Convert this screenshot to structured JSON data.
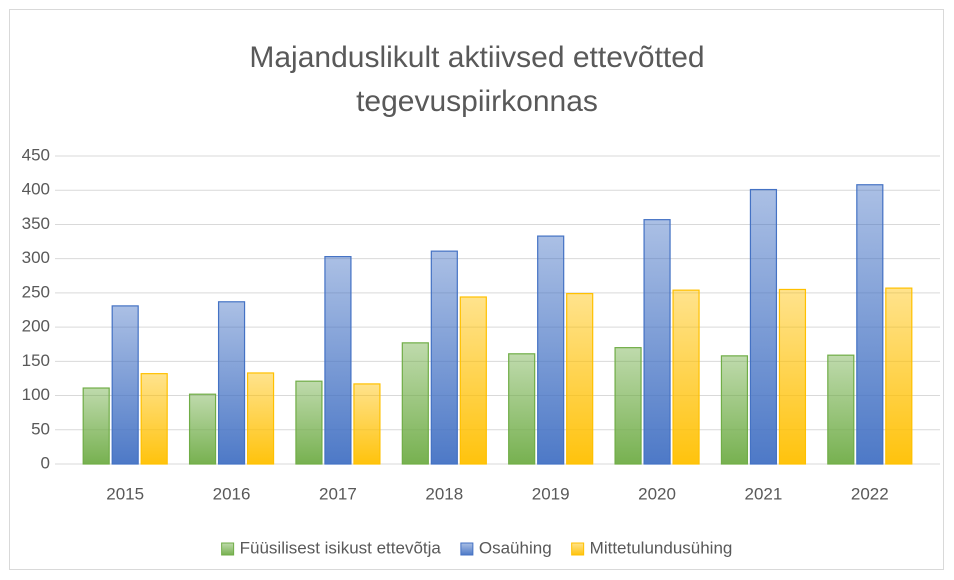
{
  "chart_data": {
    "type": "bar",
    "title": "Majanduslikult aktiivsed ettevõtted tegevuspiirkonnas",
    "categories": [
      "2015",
      "2016",
      "2017",
      "2018",
      "2019",
      "2020",
      "2021",
      "2022"
    ],
    "series": [
      {
        "name": "Füüsilisest isikust ettevõtja",
        "color": "#70ad47",
        "values": [
          111,
          102,
          121,
          177,
          161,
          170,
          158,
          159
        ]
      },
      {
        "name": "Osaühing",
        "color": "#4472c4",
        "values": [
          231,
          237,
          303,
          311,
          333,
          357,
          401,
          408
        ]
      },
      {
        "name": "Mittetulundusühing",
        "color": "#ffc000",
        "values": [
          132,
          133,
          117,
          244,
          249,
          254,
          255,
          257
        ]
      }
    ],
    "ylim": [
      0,
      450
    ],
    "yticks": [
      0,
      50,
      100,
      150,
      200,
      250,
      300,
      350,
      400,
      450
    ],
    "grid": true,
    "legend": "bottom"
  }
}
